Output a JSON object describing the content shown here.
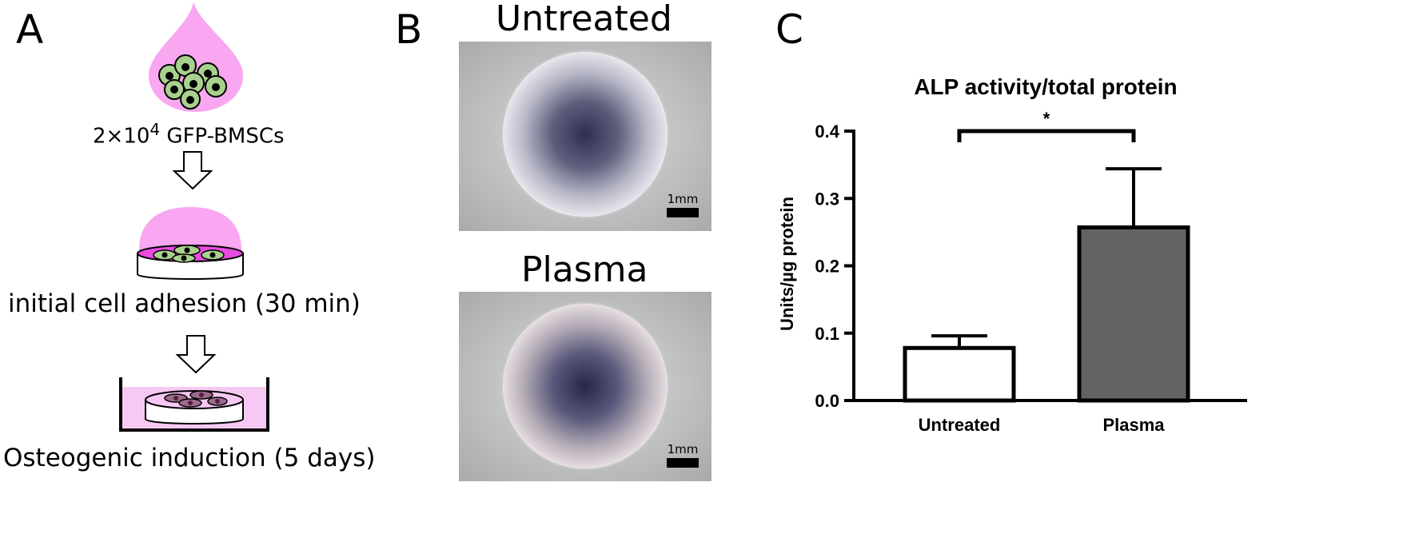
{
  "panels": {
    "a": {
      "letter": "A",
      "cell_count": "2×10",
      "cell_exponent": "4",
      "cell_type": "GFP-BMSCs",
      "step2_label": "initial cell adhesion (30 min)",
      "step3_label": "Osteogenic induction (5 days)",
      "colors": {
        "drop": "#f8a7f0",
        "cell_fill": "#a9d18e",
        "dish_top": "#e84be0",
        "medium": "#f8c8f4"
      }
    },
    "b": {
      "letter": "B",
      "top_title": "Untreated",
      "bottom_title": "Plasma",
      "scale_top": "1mm",
      "scale_bottom": "1mm"
    },
    "c": {
      "letter": "C",
      "significance": "*"
    }
  },
  "chart_data": {
    "type": "bar",
    "title": "ALP activity/total protein",
    "ylabel": "Units/µg protein",
    "xlabel": "",
    "categories": [
      "Untreated",
      "Plasma"
    ],
    "values": [
      0.078,
      0.257
    ],
    "errors": [
      0.018,
      0.087
    ],
    "ylim": [
      0,
      0.4
    ],
    "yticks": [
      "0.0",
      "0.1",
      "0.2",
      "0.3",
      "0.4"
    ],
    "bar_colors": [
      "#ffffff",
      "#636363"
    ],
    "grid": false
  }
}
